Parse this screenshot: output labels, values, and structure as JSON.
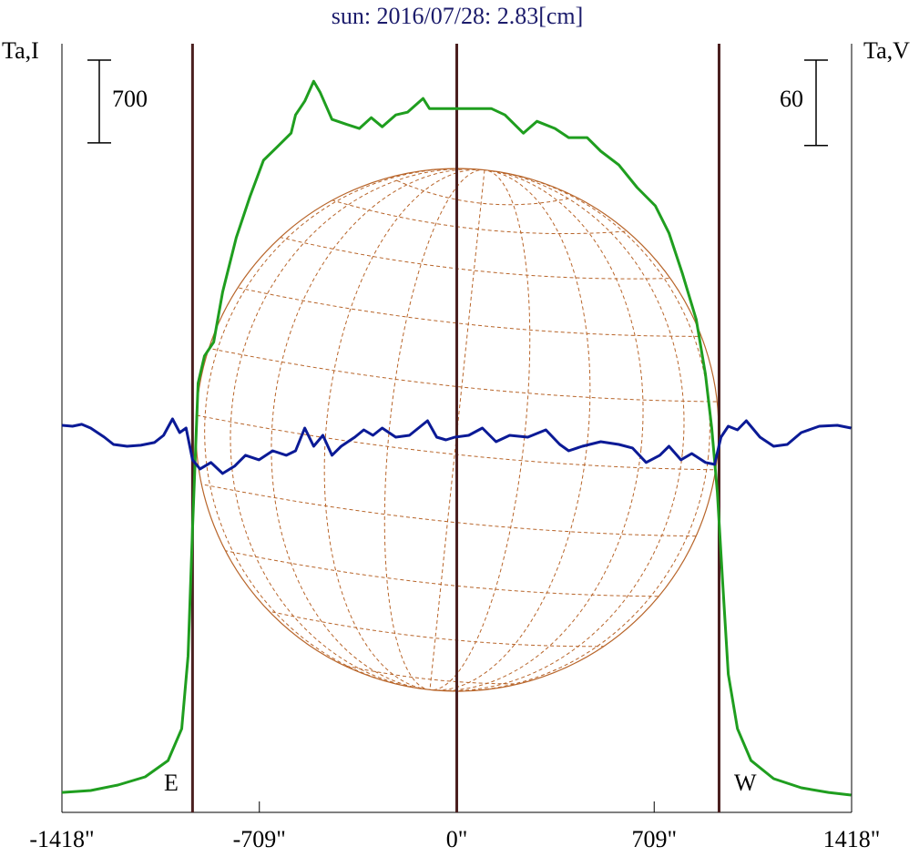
{
  "chart_data": {
    "type": "line",
    "title": "sun: 2016/07/28: 2.83[cm]",
    "ylabel": "Ta,I",
    "y2label": "Ta,V",
    "annotations": [
      "E",
      "W"
    ],
    "scale_bars": [
      {
        "value": 700,
        "label": "700",
        "axis": "y"
      },
      {
        "value": 60,
        "label": "60",
        "axis": "y2"
      }
    ],
    "vlines": [
      -949,
      0,
      942
    ],
    "xlim": [
      -1418,
      1418
    ],
    "xticks": [
      {
        "value": -1418,
        "label": "-1418\""
      },
      {
        "value": -709,
        "label": "-709\""
      },
      {
        "value": 0,
        "label": "0\""
      },
      {
        "value": 709,
        "label": "709\""
      },
      {
        "value": 1418,
        "label": "1418\""
      }
    ],
    "ylim": [
      0,
      6500
    ],
    "y2lim": [
      -270,
      270
    ],
    "series": [
      {
        "name": "I",
        "color": "#1f9e1f",
        "x": [
          -1418,
          -1315,
          -1217,
          -1119,
          -1037,
          -988,
          -965,
          -949,
          -929,
          -906,
          -873,
          -841,
          -792,
          -743,
          -694,
          -644,
          -595,
          -579,
          -546,
          -514,
          -491,
          -448,
          -399,
          -350,
          -307,
          -268,
          -219,
          -177,
          -121,
          -98,
          -7,
          59,
          124,
          173,
          239,
          288,
          353,
          402,
          468,
          517,
          582,
          648,
          713,
          762,
          811,
          860,
          893,
          916,
          936,
          955,
          975,
          1008,
          1057,
          1138,
          1237,
          1335,
          1416
        ],
        "values": [
          169,
          185,
          231,
          300,
          438,
          707,
          1323,
          2399,
          3630,
          3860,
          3976,
          4399,
          4860,
          5206,
          5514,
          5629,
          5744,
          5898,
          6014,
          6183,
          6090,
          5860,
          5821,
          5783,
          5875,
          5798,
          5898,
          5921,
          6037,
          5952,
          5952,
          5952,
          5952,
          5898,
          5744,
          5844,
          5783,
          5706,
          5706,
          5591,
          5475,
          5283,
          5129,
          4899,
          4552,
          4168,
          3707,
          3245,
          2707,
          1938,
          1169,
          707,
          438,
          285,
          208,
          169,
          146
        ]
      },
      {
        "name": "V",
        "color": "#0b1a96",
        "axis": "y2",
        "x": [
          -1418,
          -1380,
          -1347,
          -1315,
          -1266,
          -1233,
          -1184,
          -1135,
          -1086,
          -1053,
          -1021,
          -995,
          -972,
          -949,
          -922,
          -883,
          -841,
          -798,
          -759,
          -710,
          -661,
          -612,
          -579,
          -546,
          -514,
          -481,
          -448,
          -415,
          -366,
          -334,
          -301,
          -268,
          -219,
          -170,
          -105,
          -72,
          -39,
          -7,
          43,
          92,
          141,
          190,
          255,
          320,
          370,
          402,
          451,
          517,
          582,
          631,
          680,
          729,
          762,
          805,
          844,
          893,
          926,
          949,
          975,
          1008,
          1040,
          1089,
          1138,
          1187,
          1237,
          1302,
          1367,
          1416
        ],
        "values": [
          1.9,
          1.3,
          2.6,
          0,
          -6.4,
          -11.5,
          -12.8,
          -12.1,
          -10.2,
          -5.1,
          6.4,
          -3.2,
          0,
          -22.3,
          -28.7,
          -24.2,
          -31.9,
          -26.8,
          -19.1,
          -22.3,
          -16,
          -19.1,
          -16,
          0,
          -12.8,
          -5.1,
          -19.1,
          -12.8,
          -6.4,
          -1.3,
          -5.1,
          0,
          -6.4,
          -5.1,
          5.1,
          -6.4,
          -8.3,
          -6.4,
          -5.1,
          0,
          -9.6,
          -5.1,
          -6.4,
          -1.3,
          -11.5,
          -16,
          -12.8,
          -9.6,
          -11.5,
          -14,
          -24.2,
          -19.1,
          -12.8,
          -22.3,
          -17.9,
          -24.2,
          -25.5,
          -6.4,
          1.3,
          -1.3,
          5.1,
          -6.4,
          -12.8,
          -11.5,
          -3.2,
          1.3,
          1.9,
          0
        ]
      }
    ]
  }
}
